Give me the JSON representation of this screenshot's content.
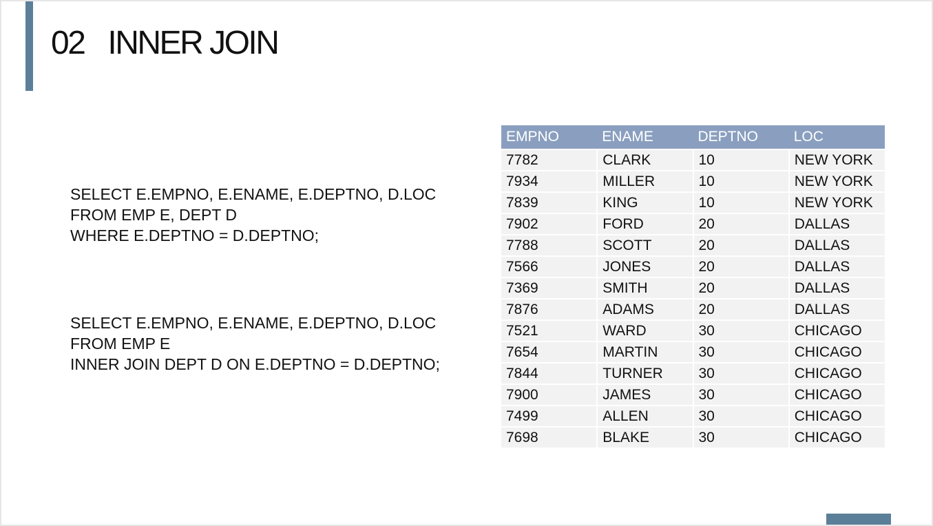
{
  "slide": {
    "number": "02",
    "title": "INNER JOIN"
  },
  "query1": [
    "SELECT E.EMPNO, E.ENAME, E.DEPTNO, D.LOC",
    "FROM EMP E, DEPT D",
    "WHERE E.DEPTNO = D.DEPTNO;"
  ],
  "query2": [
    "SELECT E.EMPNO, E.ENAME, E.DEPTNO, D.LOC",
    "FROM EMP E",
    "INNER JOIN DEPT D ON E.DEPTNO = D.DEPTNO;"
  ],
  "table": {
    "headers": [
      "EMPNO",
      "ENAME",
      "DEPTNO",
      "LOC"
    ],
    "rows": [
      [
        "7782",
        "CLARK",
        "10",
        "NEW YORK"
      ],
      [
        "7934",
        "MILLER",
        "10",
        "NEW YORK"
      ],
      [
        "7839",
        "KING",
        "10",
        "NEW YORK"
      ],
      [
        "7902",
        "FORD",
        "20",
        "DALLAS"
      ],
      [
        "7788",
        "SCOTT",
        "20",
        "DALLAS"
      ],
      [
        "7566",
        "JONES",
        "20",
        "DALLAS"
      ],
      [
        "7369",
        "SMITH",
        "20",
        "DALLAS"
      ],
      [
        "7876",
        "ADAMS",
        "20",
        "DALLAS"
      ],
      [
        "7521",
        "WARD",
        "30",
        "CHICAGO"
      ],
      [
        "7654",
        "MARTIN",
        "30",
        "CHICAGO"
      ],
      [
        "7844",
        "TURNER",
        "30",
        "CHICAGO"
      ],
      [
        "7900",
        "JAMES",
        "30",
        "CHICAGO"
      ],
      [
        "7499",
        "ALLEN",
        "30",
        "CHICAGO"
      ],
      [
        "7698",
        "BLAKE",
        "30",
        "CHICAGO"
      ]
    ]
  },
  "colors": {
    "accent": "#5b7f99",
    "header_bg": "#8a9fbf",
    "row_bg": "#f2f2f2"
  }
}
